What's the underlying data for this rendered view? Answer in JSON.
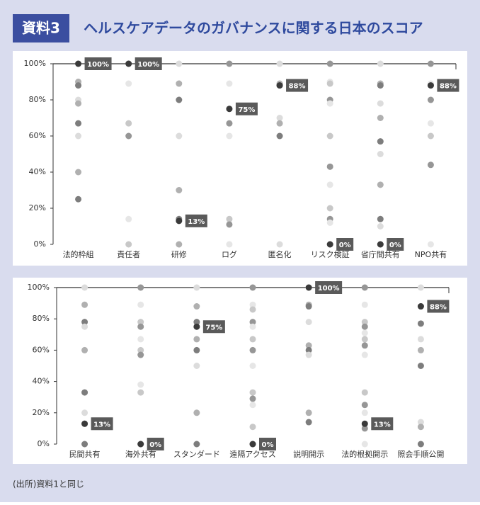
{
  "header": {
    "badge": "資料3",
    "title": "ヘルスケアデータのガバナンスに関する日本のスコア"
  },
  "chart_data": [
    {
      "type": "strip",
      "categories": [
        "法的枠組",
        "責任者",
        "研修",
        "ログ",
        "匿名化",
        "リスク検証",
        "省庁間共有",
        "NPO共有"
      ],
      "points": [
        [
          100,
          90,
          88,
          80,
          78,
          67,
          60,
          40,
          25
        ],
        [
          100,
          89,
          67,
          60,
          14,
          0
        ],
        [
          100,
          89,
          80,
          60,
          30,
          14,
          13,
          0
        ],
        [
          100,
          89,
          75,
          67,
          60,
          14,
          11,
          0
        ],
        [
          100,
          89,
          88,
          70,
          67,
          60,
          0
        ],
        [
          100,
          90,
          89,
          80,
          78,
          60,
          43,
          33,
          20,
          14,
          12,
          0
        ],
        [
          100,
          89,
          88,
          78,
          70,
          57,
          50,
          33,
          14,
          10,
          0
        ],
        [
          100,
          89,
          88,
          80,
          67,
          60,
          44,
          0
        ]
      ],
      "values": [
        100,
        100,
        13,
        75,
        88,
        0,
        0,
        88
      ],
      "value_labels": [
        "100%",
        "100%",
        "13%",
        "75%",
        "88%",
        "0%",
        "0%",
        "88%"
      ],
      "ylim": [
        0,
        100
      ],
      "yticks": [
        {
          "value": 0,
          "label": "0%"
        },
        {
          "value": 20,
          "label": "20%"
        },
        {
          "value": 40,
          "label": "40%"
        },
        {
          "value": 60,
          "label": "60%"
        },
        {
          "value": 80,
          "label": "80%"
        },
        {
          "value": 100,
          "label": "100%"
        }
      ]
    },
    {
      "type": "strip",
      "categories": [
        "民間共有",
        "海外共有",
        "スタンダード",
        "遠隔アクセス",
        "説明開示",
        "法的根拠開示",
        "照会手順公開"
      ],
      "points": [
        [
          100,
          89,
          78,
          75,
          60,
          33,
          20,
          13,
          0
        ],
        [
          100,
          89,
          78,
          75,
          67,
          60,
          57,
          38,
          33,
          0
        ],
        [
          100,
          88,
          78,
          75,
          67,
          60,
          50,
          20,
          0
        ],
        [
          100,
          89,
          86,
          78,
          75,
          67,
          60,
          50,
          33,
          29,
          25,
          11,
          0
        ],
        [
          100,
          89,
          88,
          78,
          63,
          60,
          57,
          20,
          14
        ],
        [
          100,
          89,
          78,
          75,
          71,
          67,
          63,
          57,
          33,
          25,
          20,
          13,
          10,
          0
        ],
        [
          100,
          88,
          77,
          67,
          60,
          50,
          14,
          11,
          0
        ]
      ],
      "values": [
        13,
        0,
        75,
        0,
        100,
        13,
        88
      ],
      "value_labels": [
        "13%",
        "0%",
        "75%",
        "0%",
        "100%",
        "13%",
        "88%"
      ],
      "ylim": [
        0,
        100
      ],
      "yticks": [
        {
          "value": 0,
          "label": "0%"
        },
        {
          "value": 20,
          "label": "20%"
        },
        {
          "value": 40,
          "label": "40%"
        },
        {
          "value": 60,
          "label": "60%"
        },
        {
          "value": 80,
          "label": "80%"
        },
        {
          "value": 100,
          "label": "100%"
        }
      ]
    }
  ],
  "footer": {
    "source": "(出所)資料1と同じ"
  }
}
